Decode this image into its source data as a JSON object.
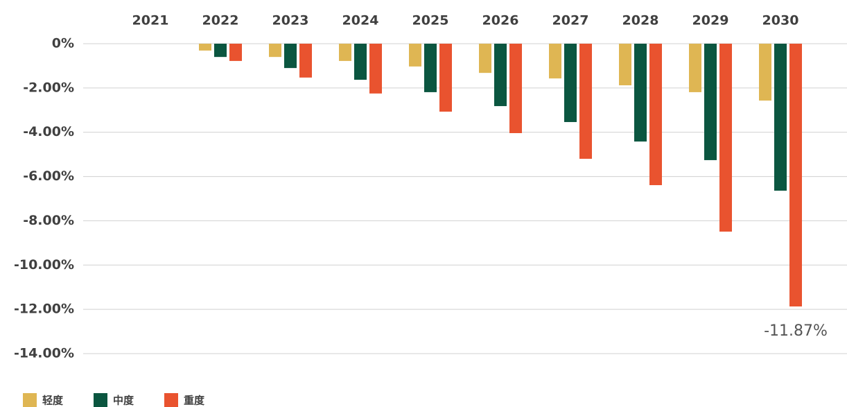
{
  "chart_data": {
    "type": "bar",
    "categories": [
      "2021",
      "2022",
      "2023",
      "2024",
      "2025",
      "2026",
      "2027",
      "2028",
      "2029",
      "2030"
    ],
    "series": [
      {
        "name": "轻度",
        "color": "#dfb653",
        "values": [
          0,
          -0.31,
          -0.6,
          -0.78,
          -1.03,
          -1.32,
          -1.57,
          -1.88,
          -2.19,
          -2.57
        ]
      },
      {
        "name": "中度",
        "color": "#0b5640",
        "values": [
          0,
          -0.6,
          -1.1,
          -1.63,
          -2.19,
          -2.82,
          -3.54,
          -4.42,
          -5.26,
          -6.64
        ]
      },
      {
        "name": "重度",
        "color": "#e9532f",
        "values": [
          0,
          -0.78,
          -1.53,
          -2.25,
          -3.07,
          -4.04,
          -5.2,
          -6.39,
          -8.49,
          -11.87
        ],
        "value_labels": [
          null,
          null,
          null,
          null,
          null,
          null,
          null,
          null,
          null,
          "-11.87%"
        ]
      }
    ],
    "ylim": [
      -14,
      0
    ],
    "yticks": [
      {
        "value": 0,
        "label": "0%"
      },
      {
        "value": -2,
        "label": "-2.00%"
      },
      {
        "value": -4,
        "label": "-4.00%"
      },
      {
        "value": -6,
        "label": "-6.00%"
      },
      {
        "value": -8,
        "label": "-8.00%"
      },
      {
        "value": -10,
        "label": "-10.00%"
      },
      {
        "value": -12,
        "label": "-12.00%"
      },
      {
        "value": -14,
        "label": "-14.00%"
      }
    ],
    "grid": true,
    "legend": "bottom-left"
  }
}
